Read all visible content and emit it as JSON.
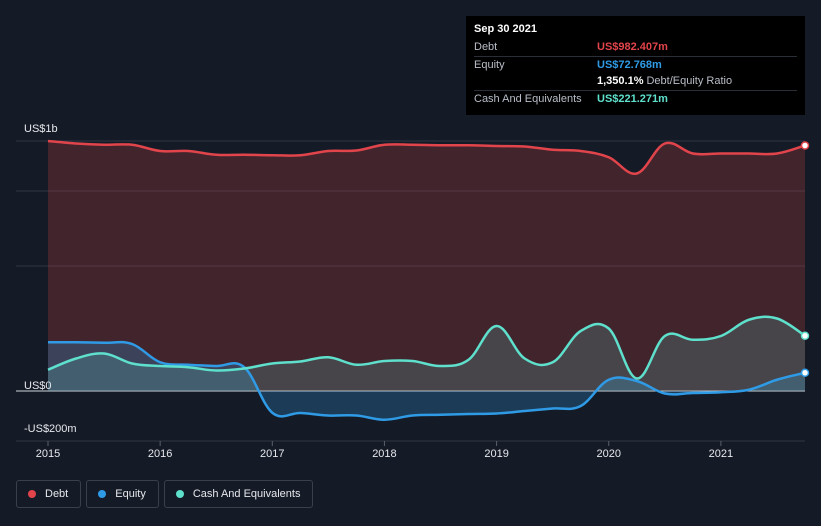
{
  "tooltip": {
    "date": "Sep 30 2021",
    "rows": [
      {
        "label": "Debt",
        "value": "US$982.407m",
        "color": "#e2444b"
      },
      {
        "label": "Equity",
        "value": "US$72.768m",
        "color": "#2f9be6"
      },
      {
        "label": "",
        "value": "1,350.1%",
        "unit": "Debt/Equity Ratio",
        "color": "#ffffff"
      },
      {
        "label": "Cash And Equivalents",
        "value": "US$221.271m",
        "color": "#5ee0cc"
      }
    ]
  },
  "legend": [
    {
      "label": "Debt",
      "color": "#e2444b"
    },
    {
      "label": "Equity",
      "color": "#2f9be6"
    },
    {
      "label": "Cash And Equivalents",
      "color": "#5ee0cc"
    }
  ],
  "chart_data": {
    "type": "area",
    "ylabels": [
      "US$1b",
      "US$0",
      "-US$200m"
    ],
    "ylim": [
      -200,
      1000
    ],
    "xlim": [
      2015.0,
      2021.75
    ],
    "xticks": [
      2015,
      2016,
      2017,
      2018,
      2019,
      2020,
      2021
    ],
    "xtick_labels": [
      "2015",
      "2016",
      "2017",
      "2018",
      "2019",
      "2020",
      "2021"
    ],
    "grid": true,
    "series": [
      {
        "name": "Debt",
        "color": "#e2444b",
        "x": [
          2015.0,
          2015.25,
          2015.5,
          2015.75,
          2016.0,
          2016.25,
          2016.5,
          2016.75,
          2017.0,
          2017.25,
          2017.5,
          2017.75,
          2018.0,
          2018.25,
          2018.5,
          2018.75,
          2019.0,
          2019.25,
          2019.5,
          2019.75,
          2020.0,
          2020.25,
          2020.5,
          2020.75,
          2021.0,
          2021.25,
          2021.5,
          2021.75
        ],
        "y": [
          1000,
          990,
          985,
          985,
          960,
          960,
          945,
          945,
          943,
          943,
          960,
          962,
          985,
          985,
          983,
          983,
          980,
          978,
          965,
          960,
          935,
          870,
          990,
          950,
          950,
          950,
          950,
          982
        ]
      },
      {
        "name": "Equity",
        "color": "#2f9be6",
        "x": [
          2015.0,
          2015.25,
          2015.5,
          2015.75,
          2016.0,
          2016.25,
          2016.5,
          2016.75,
          2017.0,
          2017.25,
          2017.5,
          2017.75,
          2018.0,
          2018.25,
          2018.5,
          2018.75,
          2019.0,
          2019.25,
          2019.5,
          2019.75,
          2020.0,
          2020.25,
          2020.5,
          2020.75,
          2021.0,
          2021.25,
          2021.5,
          2021.75
        ],
        "y": [
          195,
          195,
          193,
          188,
          115,
          105,
          100,
          95,
          -87,
          -88,
          -98,
          -98,
          -115,
          -98,
          -95,
          -92,
          -90,
          -80,
          -70,
          -60,
          45,
          40,
          -10,
          -8,
          -5,
          5,
          45,
          73
        ]
      },
      {
        "name": "Cash And Equivalents",
        "color": "#5ee0cc",
        "x": [
          2015.0,
          2015.25,
          2015.5,
          2015.75,
          2016.0,
          2016.25,
          2016.5,
          2016.75,
          2017.0,
          2017.25,
          2017.5,
          2017.75,
          2018.0,
          2018.25,
          2018.5,
          2018.75,
          2019.0,
          2019.25,
          2019.5,
          2019.75,
          2020.0,
          2020.25,
          2020.5,
          2020.75,
          2021.0,
          2021.25,
          2021.5,
          2021.75
        ],
        "y": [
          85,
          130,
          150,
          110,
          100,
          95,
          82,
          90,
          110,
          118,
          135,
          105,
          120,
          120,
          100,
          125,
          260,
          130,
          115,
          240,
          250,
          50,
          220,
          205,
          220,
          285,
          290,
          221
        ]
      }
    ]
  }
}
